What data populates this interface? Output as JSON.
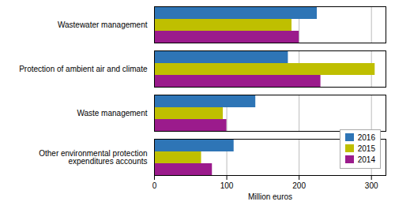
{
  "chart_data": {
    "type": "bar",
    "orientation": "horizontal",
    "categories": [
      "Wastewater management",
      "Protection of ambient air and climate",
      "Waste management",
      "Other environmental protection\nexpenditures accounts"
    ],
    "series": [
      {
        "name": "2016",
        "color": "#2E75B6",
        "values": [
          225,
          185,
          140,
          110
        ]
      },
      {
        "name": "2015",
        "color": "#BFBF00",
        "values": [
          190,
          305,
          95,
          65
        ]
      },
      {
        "name": "2014",
        "color": "#9B1B8C",
        "values": [
          200,
          230,
          100,
          80
        ]
      }
    ],
    "xlabel": "Million euros",
    "xlim": [
      0,
      320
    ],
    "xticks": [
      0,
      100,
      200,
      300
    ],
    "grid": true,
    "legend": "lower right"
  }
}
